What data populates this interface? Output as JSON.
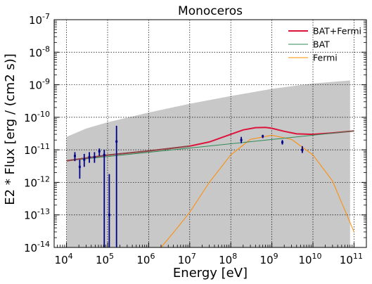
{
  "chart_data": {
    "type": "line",
    "title": "Monoceros",
    "xlabel": "Energy [eV]",
    "ylabel": "E2 * Flux [erg / (cm2 s)]",
    "xscale": "log",
    "yscale": "log",
    "xlim": [
      5000,
      200000000000
    ],
    "ylim": [
      1e-14,
      1e-07
    ],
    "grid": true,
    "legend_position": "top-right",
    "x_ticks": [
      {
        "value": 10000,
        "label": "10^4"
      },
      {
        "value": 100000,
        "label": "10^5"
      },
      {
        "value": 1000000,
        "label": "10^6"
      },
      {
        "value": 10000000,
        "label": "10^7"
      },
      {
        "value": 100000000,
        "label": "10^8"
      },
      {
        "value": 1000000000,
        "label": "10^9"
      },
      {
        "value": 10000000000,
        "label": "10^10"
      },
      {
        "value": 100000000000,
        "label": "10^11"
      }
    ],
    "y_ticks": [
      {
        "value": 1e-14,
        "label": "10^-14"
      },
      {
        "value": 1e-13,
        "label": "10^-13"
      },
      {
        "value": 1e-12,
        "label": "10^-12"
      },
      {
        "value": 1e-11,
        "label": "10^-11"
      },
      {
        "value": 1e-10,
        "label": "10^-10"
      },
      {
        "value": 1e-09,
        "label": "10^-9"
      },
      {
        "value": 1e-08,
        "label": "10^-8"
      },
      {
        "value": 1e-07,
        "label": "10^-7"
      }
    ],
    "band": {
      "color": "#c8c8c8",
      "x": [
        10000,
        30000,
        100000,
        1000000,
        10000000,
        100000000,
        1000000000,
        10000000000,
        80000000000
      ],
      "upper": [
        2.5e-11,
        4.5e-11,
        7e-11,
        1.4e-10,
        2.6e-10,
        4.5e-10,
        7.5e-10,
        1.1e-09,
        1.35e-09
      ],
      "lower": [
        1e-14,
        1e-14,
        1e-14,
        1e-14,
        1e-14,
        1e-14,
        1e-14,
        1e-14,
        1e-14
      ]
    },
    "series": [
      {
        "name": "BAT+Fermi",
        "color": "#dc143c",
        "x": [
          10000,
          100000,
          1000000,
          10000000,
          30000000,
          100000000,
          200000000,
          400000000,
          700000000,
          1000000000,
          2000000000,
          4000000000,
          10000000000,
          30000000000,
          100000000000
        ],
        "y": [
          4.6e-12,
          6.9e-12,
          9.2e-12,
          1.3e-11,
          1.75e-11,
          3e-11,
          4.1e-11,
          4.8e-11,
          4.9e-11,
          4.6e-11,
          3.7e-11,
          3.1e-11,
          3e-11,
          3.3e-11,
          3.8e-11
        ]
      },
      {
        "name": "BAT",
        "color": "#2e8b57",
        "x": [
          10000,
          100000000000
        ],
        "y": [
          4.6e-12,
          3.8e-11
        ]
      },
      {
        "name": "Fermi",
        "color": "#ff8c00",
        "x": [
          2000000,
          5000000,
          10000000,
          30000000,
          100000000,
          300000000,
          1000000000,
          3000000000,
          10000000000,
          30000000000,
          100000000000
        ],
        "y": [
          1e-14,
          4e-14,
          1.2e-13,
          1e-12,
          7e-12,
          2.1e-11,
          2.8e-11,
          2.1e-11,
          7e-12,
          1.1e-12,
          3e-14
        ]
      }
    ],
    "bat_points": [
      {
        "x": 16000,
        "y": 6.5e-12,
        "lo": 4.5e-12,
        "hi": 8.5e-12
      },
      {
        "x": 21000,
        "y": 3e-12,
        "lo": 1.3e-12,
        "hi": 5e-12
      },
      {
        "x": 27000,
        "y": 5e-12,
        "lo": 3e-12,
        "hi": 7.5e-12
      },
      {
        "x": 36000,
        "y": 6e-12,
        "lo": 4e-12,
        "hi": 8.5e-12
      },
      {
        "x": 48000,
        "y": 6e-12,
        "lo": 4e-12,
        "hi": 8.5e-12
      },
      {
        "x": 63000,
        "y": 9e-12,
        "lo": 6.5e-12,
        "hi": 1.1e-11
      },
      {
        "x": 83000,
        "y": 7e-12,
        "lo": 1e-14,
        "hi": 1e-11
      },
      {
        "x": 110000,
        "y": 1e-13,
        "lo": 1e-14,
        "hi": 1.8e-12
      },
      {
        "x": 165000,
        "y": 1.8e-11,
        "lo": 1e-14,
        "hi": 5.5e-11
      }
    ],
    "fermi_points": [
      {
        "x": 180000000,
        "y": 2e-11,
        "lo": 1.6e-11,
        "hi": 2.5e-11
      },
      {
        "x": 600000000,
        "y": 2.6e-11,
        "lo": 2.3e-11,
        "hi": 2.9e-11
      },
      {
        "x": 1800000000,
        "y": 1.7e-11,
        "lo": 1.45e-11,
        "hi": 2e-11
      },
      {
        "x": 5500000000,
        "y": 1e-11,
        "lo": 8e-12,
        "hi": 1.3e-11
      }
    ],
    "point_color": "#00008b"
  }
}
